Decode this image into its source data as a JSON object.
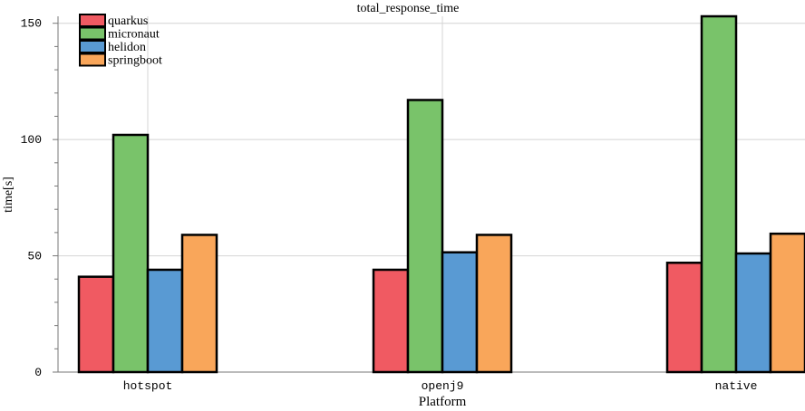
{
  "chart_data": {
    "type": "bar",
    "title": "total_response_time",
    "xlabel": "Platform",
    "ylabel": "time[s]",
    "categories": [
      "hotspot",
      "openj9",
      "native"
    ],
    "series": [
      {
        "name": "quarkus",
        "color": "#f05a62",
        "values": [
          41,
          44,
          47
        ]
      },
      {
        "name": "micronaut",
        "color": "#79c36a",
        "values": [
          102,
          117,
          153
        ]
      },
      {
        "name": "helidon",
        "color": "#599ad3",
        "values": [
          44,
          51.5,
          51
        ]
      },
      {
        "name": "springboot",
        "color": "#f9a65a",
        "values": [
          59,
          59,
          59.5
        ]
      }
    ],
    "ylim": [
      0,
      153
    ],
    "yticks": [
      0,
      50,
      100,
      150
    ],
    "grid": true,
    "legend_position": "top-left"
  }
}
